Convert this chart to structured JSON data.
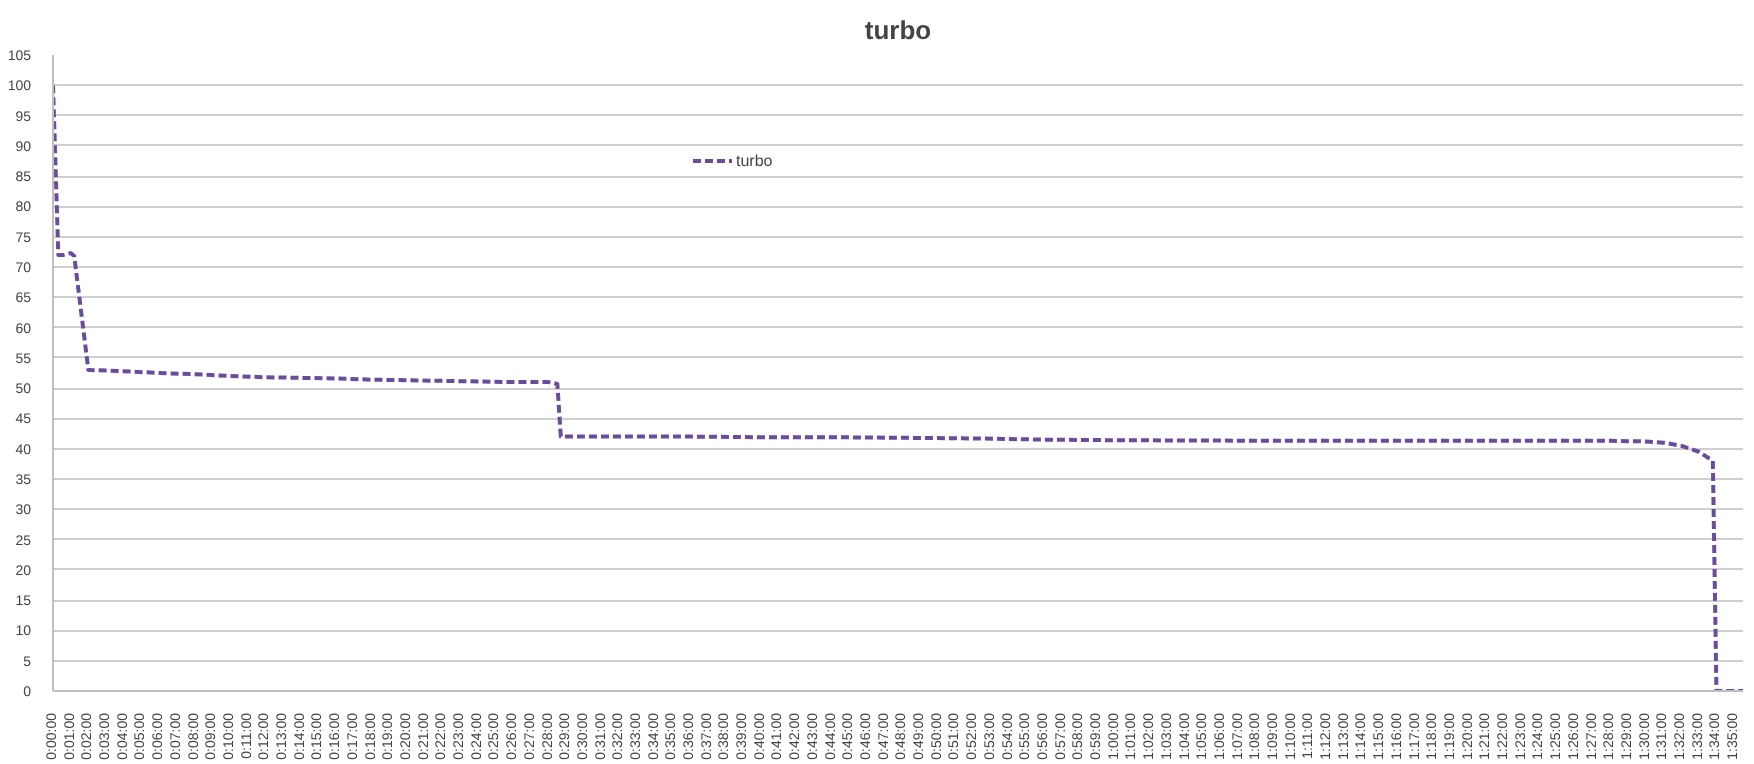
{
  "chart_data": {
    "type": "line",
    "title": "turbo",
    "legend": "top",
    "grid": "y",
    "line_style": "dashed",
    "marker": "none",
    "x": [
      0,
      0.005,
      0.01,
      0.0167,
      0.02,
      0.0333,
      0.0667,
      0.1,
      0.1333,
      0.1667,
      0.2,
      0.2333,
      0.2667,
      0.3,
      0.3333,
      0.3667,
      0.4,
      0.4333,
      0.4667,
      0.475,
      0.4783,
      0.5333,
      0.6,
      0.6667,
      0.7333,
      0.8,
      0.8667,
      0.9333,
      1.0,
      1.1667,
      1.3333,
      1.4667,
      1.5,
      1.5167,
      1.5333,
      1.55,
      1.5633,
      1.5667,
      1.5917
    ],
    "series": [
      {
        "name": "turbo",
        "color": "#6a4c9c",
        "values": [
          100,
          72,
          72,
          72.3,
          71.8,
          53,
          52.8,
          52.5,
          52.3,
          52,
          51.8,
          51.7,
          51.6,
          51.4,
          51.3,
          51.2,
          51.1,
          51,
          51,
          50.7,
          42,
          42,
          42,
          41.9,
          41.9,
          41.8,
          41.7,
          41.5,
          41.4,
          41.3,
          41.3,
          41.3,
          41.2,
          41,
          40.5,
          39.5,
          38,
          0,
          0
        ]
      }
    ],
    "xlim": [
      0,
      1.5917
    ],
    "ylim": [
      0,
      105
    ],
    "yticks": [
      0,
      5,
      10,
      15,
      20,
      25,
      30,
      35,
      40,
      45,
      50,
      55,
      60,
      65,
      70,
      75,
      80,
      85,
      90,
      95,
      100,
      105
    ],
    "xticks": [
      {
        "value": 0,
        "label": "0:00:00"
      },
      {
        "value": 0.0167,
        "label": "0:01:00"
      },
      {
        "value": 0.0333,
        "label": "0:02:00"
      },
      {
        "value": 0.05,
        "label": "0:03:00"
      },
      {
        "value": 0.0667,
        "label": "0:04:00"
      },
      {
        "value": 0.0833,
        "label": "0:05:00"
      },
      {
        "value": 0.1,
        "label": "0:06:00"
      },
      {
        "value": 0.1167,
        "label": "0:07:00"
      },
      {
        "value": 0.1333,
        "label": "0:08:00"
      },
      {
        "value": 0.15,
        "label": "0:09:00"
      },
      {
        "value": 0.1667,
        "label": "0:10:00"
      },
      {
        "value": 0.1833,
        "label": "0:11:00"
      },
      {
        "value": 0.2,
        "label": "0:12:00"
      },
      {
        "value": 0.2167,
        "label": "0:13:00"
      },
      {
        "value": 0.2333,
        "label": "0:14:00"
      },
      {
        "value": 0.25,
        "label": "0:15:00"
      },
      {
        "value": 0.2667,
        "label": "0:16:00"
      },
      {
        "value": 0.2833,
        "label": "0:17:00"
      },
      {
        "value": 0.3,
        "label": "0:18:00"
      },
      {
        "value": 0.3167,
        "label": "0:19:00"
      },
      {
        "value": 0.3333,
        "label": "0:20:00"
      },
      {
        "value": 0.35,
        "label": "0:21:00"
      },
      {
        "value": 0.3667,
        "label": "0:22:00"
      },
      {
        "value": 0.3833,
        "label": "0:23:00"
      },
      {
        "value": 0.4,
        "label": "0:24:00"
      },
      {
        "value": 0.4167,
        "label": "0:25:00"
      },
      {
        "value": 0.4333,
        "label": "0:26:00"
      },
      {
        "value": 0.45,
        "label": "0:27:00"
      },
      {
        "value": 0.4667,
        "label": "0:28:00"
      },
      {
        "value": 0.4833,
        "label": "0:29:00"
      },
      {
        "value": 0.5,
        "label": "0:30:00"
      },
      {
        "value": 0.5167,
        "label": "0:31:00"
      },
      {
        "value": 0.5333,
        "label": "0:32:00"
      },
      {
        "value": 0.55,
        "label": "0:33:00"
      },
      {
        "value": 0.5667,
        "label": "0:34:00"
      },
      {
        "value": 0.5833,
        "label": "0:35:00"
      },
      {
        "value": 0.6,
        "label": "0:36:00"
      },
      {
        "value": 0.6167,
        "label": "0:37:00"
      },
      {
        "value": 0.6333,
        "label": "0:38:00"
      },
      {
        "value": 0.65,
        "label": "0:39:00"
      },
      {
        "value": 0.6667,
        "label": "0:40:00"
      },
      {
        "value": 0.6833,
        "label": "0:41:00"
      },
      {
        "value": 0.7,
        "label": "0:42:00"
      },
      {
        "value": 0.7167,
        "label": "0:43:00"
      },
      {
        "value": 0.7333,
        "label": "0:44:00"
      },
      {
        "value": 0.75,
        "label": "0:45:00"
      },
      {
        "value": 0.7667,
        "label": "0:46:00"
      },
      {
        "value": 0.7833,
        "label": "0:47:00"
      },
      {
        "value": 0.8,
        "label": "0:48:00"
      },
      {
        "value": 0.8167,
        "label": "0:49:00"
      },
      {
        "value": 0.8333,
        "label": "0:50:00"
      },
      {
        "value": 0.85,
        "label": "0:51:00"
      },
      {
        "value": 0.8667,
        "label": "0:52:00"
      },
      {
        "value": 0.8833,
        "label": "0:53:00"
      },
      {
        "value": 0.9,
        "label": "0:54:00"
      },
      {
        "value": 0.9167,
        "label": "0:55:00"
      },
      {
        "value": 0.9333,
        "label": "0:56:00"
      },
      {
        "value": 0.95,
        "label": "0:57:00"
      },
      {
        "value": 0.9667,
        "label": "0:58:00"
      },
      {
        "value": 0.9833,
        "label": "0:59:00"
      },
      {
        "value": 1,
        "label": "1:00:00"
      },
      {
        "value": 1.0167,
        "label": "1:01:00"
      },
      {
        "value": 1.0333,
        "label": "1:02:00"
      },
      {
        "value": 1.05,
        "label": "1:03:00"
      },
      {
        "value": 1.0667,
        "label": "1:04:00"
      },
      {
        "value": 1.0833,
        "label": "1:05:00"
      },
      {
        "value": 1.1,
        "label": "1:06:00"
      },
      {
        "value": 1.1167,
        "label": "1:07:00"
      },
      {
        "value": 1.1333,
        "label": "1:08:00"
      },
      {
        "value": 1.15,
        "label": "1:09:00"
      },
      {
        "value": 1.1667,
        "label": "1:10:00"
      },
      {
        "value": 1.1833,
        "label": "1:11:00"
      },
      {
        "value": 1.2,
        "label": "1:12:00"
      },
      {
        "value": 1.2167,
        "label": "1:13:00"
      },
      {
        "value": 1.2333,
        "label": "1:14:00"
      },
      {
        "value": 1.25,
        "label": "1:15:00"
      },
      {
        "value": 1.2667,
        "label": "1:16:00"
      },
      {
        "value": 1.2833,
        "label": "1:17:00"
      },
      {
        "value": 1.3,
        "label": "1:18:00"
      },
      {
        "value": 1.3167,
        "label": "1:19:00"
      },
      {
        "value": 1.3333,
        "label": "1:20:00"
      },
      {
        "value": 1.35,
        "label": "1:21:00"
      },
      {
        "value": 1.3667,
        "label": "1:22:00"
      },
      {
        "value": 1.3833,
        "label": "1:23:00"
      },
      {
        "value": 1.4,
        "label": "1:24:00"
      },
      {
        "value": 1.4167,
        "label": "1:25:00"
      },
      {
        "value": 1.4333,
        "label": "1:26:00"
      },
      {
        "value": 1.45,
        "label": "1:27:00"
      },
      {
        "value": 1.4667,
        "label": "1:28:00"
      },
      {
        "value": 1.4833,
        "label": "1:29:00"
      },
      {
        "value": 1.5,
        "label": "1:30:00"
      },
      {
        "value": 1.5167,
        "label": "1:31:00"
      },
      {
        "value": 1.5333,
        "label": "1:32:00"
      },
      {
        "value": 1.55,
        "label": "1:33:00"
      },
      {
        "value": 1.5667,
        "label": "1:34:00"
      },
      {
        "value": 1.5833,
        "label": "1:35:00"
      }
    ]
  }
}
